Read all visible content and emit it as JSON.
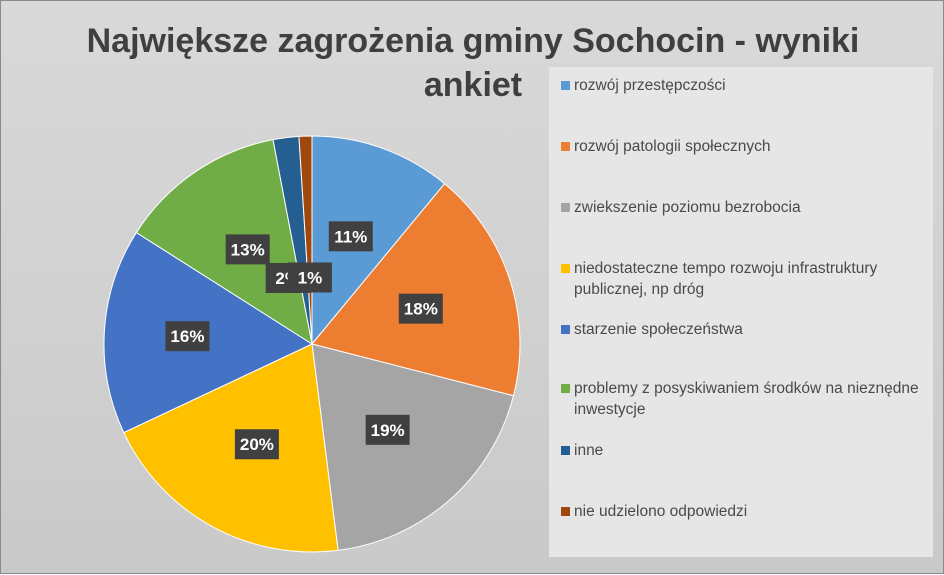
{
  "chart_data": {
    "type": "pie",
    "title_line1": "Największe zagrożenia gminy Sochocin - wyniki",
    "title_line2": "ankiet",
    "legend_position": "right",
    "slices": [
      {
        "label": "rozwój przestępczości",
        "value": 11,
        "data_label": "11%",
        "color": "#5b9bd5"
      },
      {
        "label": "rozwój patologii społecznych",
        "value": 18,
        "data_label": "18%",
        "color": "#ed7d31"
      },
      {
        "label": "zwiekszenie poziomu bezrobocia",
        "value": 19,
        "data_label": "19%",
        "color": "#a5a5a5"
      },
      {
        "label": "niedostateczne tempo rozwoju infrastruktury publicznej, np dróg",
        "value": 20,
        "data_label": "20%",
        "color": "#ffc000"
      },
      {
        "label": "starzenie społeczeństwa",
        "value": 16,
        "data_label": "16%",
        "color": "#4472c4"
      },
      {
        "label": "problemy z posyskiwaniem środków na nieznędne inwestycje",
        "value": 13,
        "data_label": "13%",
        "color": "#70ad47"
      },
      {
        "label": "inne",
        "value": 2,
        "data_label": "2%",
        "color": "#255e91"
      },
      {
        "label": "nie udzielono odpowiedzi",
        "value": 1,
        "data_label": "1%",
        "color": "#9e480e"
      }
    ]
  }
}
